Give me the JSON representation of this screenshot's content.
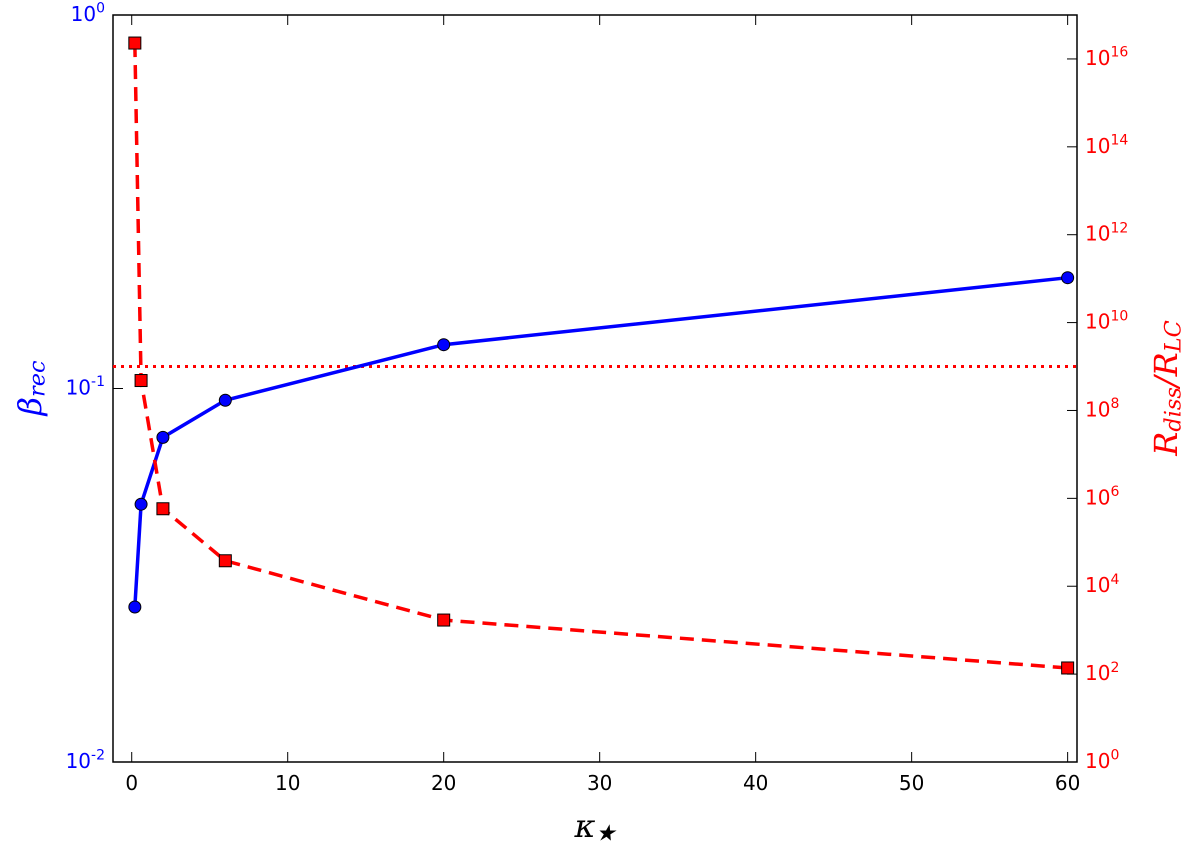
{
  "chart_data": {
    "type": "line",
    "xlabel": "κ_★",
    "ylabel": "β_rec",
    "y2label": "R_diss/R_LC",
    "x": [
      0.2,
      0.6,
      2,
      6,
      20,
      60
    ],
    "series": [
      {
        "name": "β_rec",
        "color": "#0000ff",
        "marker": "circle",
        "linestyle": "solid",
        "values": [
          0.026,
          0.049,
          0.074,
          0.093,
          0.131,
          0.198
        ]
      },
      {
        "name": "R_diss/R_LC",
        "color": "#ff0000",
        "marker": "square",
        "linestyle": "dashed",
        "axis": "y2",
        "values": [
          2.3e+16,
          480000000.0,
          580000.0,
          38000.0,
          1700.0,
          138
        ]
      }
    ],
    "hline": {
      "value": 1000000000.0,
      "axis": "y2",
      "color": "#ff0000",
      "linestyle": "dotted"
    },
    "xlim": [
      -1.2,
      60.6
    ],
    "xticks": [
      0,
      10,
      20,
      30,
      40,
      50,
      60
    ],
    "ylim": [
      0.01,
      1
    ],
    "ylog": true,
    "yticks": [
      {
        "value": 0.01,
        "label": "10^-2"
      },
      {
        "value": 0.1,
        "label": "10^-1"
      },
      {
        "value": 1,
        "label": "10^0"
      }
    ],
    "y2lim": [
      1,
      1e+17
    ],
    "y2log": true,
    "y2ticks": [
      {
        "value": 1,
        "label": "10^0"
      },
      {
        "value": 100,
        "label": "10^2"
      },
      {
        "value": 10000,
        "label": "10^4"
      },
      {
        "value": 1000000.0,
        "label": "10^6"
      },
      {
        "value": 100000000.0,
        "label": "10^8"
      },
      {
        "value": 10000000000.0,
        "label": "10^10"
      },
      {
        "value": 1000000000000.0,
        "label": "10^12"
      },
      {
        "value": 100000000000000.0,
        "label": "10^14"
      },
      {
        "value": 1e+16,
        "label": "10^16"
      }
    ],
    "grid": false
  }
}
